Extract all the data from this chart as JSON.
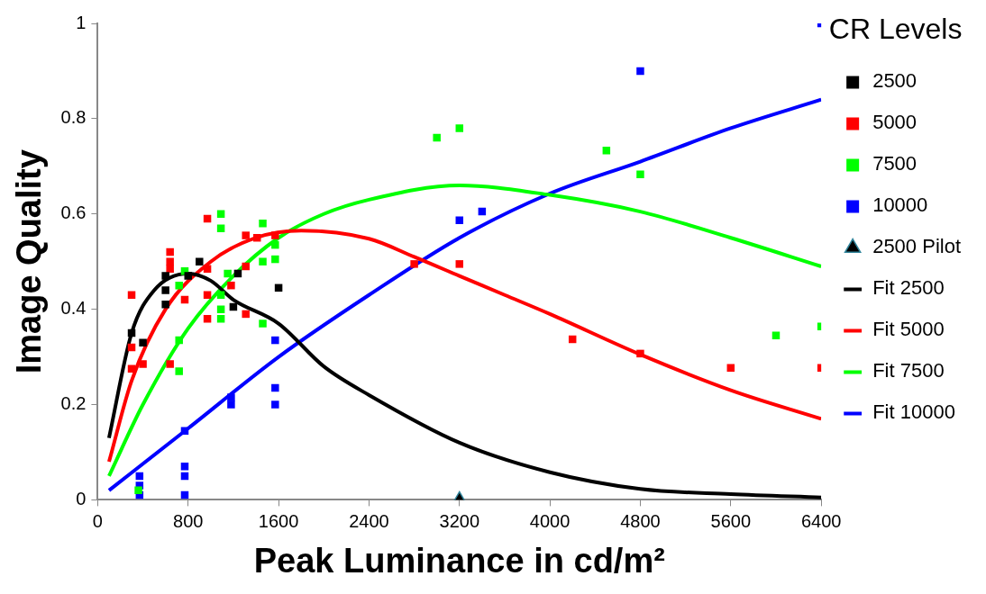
{
  "chart_data": {
    "type": "scatter",
    "xlabel": "Peak Luminance in cd/m²",
    "ylabel": "Image Quality",
    "legend_title": "CR Levels",
    "legend": "right",
    "grid": false,
    "xlim": [
      0,
      6400
    ],
    "xticks": [
      0,
      800,
      1600,
      2400,
      3200,
      4000,
      4800,
      5600,
      6400
    ],
    "ylim": [
      0,
      1
    ],
    "yticks": [
      0,
      0.2,
      0.4,
      0.6,
      0.8,
      1
    ],
    "series": [
      {
        "name": "2500",
        "type": "scatter",
        "marker": "square",
        "color": "#000000",
        "x": [
          300,
          400,
          600,
          600,
          600,
          800,
          900,
          1240,
          1200,
          1600
        ],
        "values": [
          0.35,
          0.33,
          0.47,
          0.44,
          0.41,
          0.47,
          0.5,
          0.475,
          0.405,
          0.445
        ]
      },
      {
        "name": "5000",
        "type": "scatter",
        "marker": "square",
        "color": "#ff0000",
        "x": [
          300,
          300,
          300,
          400,
          640,
          640,
          640,
          640,
          770,
          970,
          970,
          970,
          970,
          1180,
          1310,
          1310,
          1310,
          1410,
          1570,
          2800,
          3200,
          4200,
          4800,
          5600,
          6400
        ],
        "values": [
          0.43,
          0.32,
          0.275,
          0.285,
          0.52,
          0.5,
          0.485,
          0.285,
          0.42,
          0.59,
          0.485,
          0.43,
          0.38,
          0.45,
          0.555,
          0.49,
          0.39,
          0.55,
          0.555,
          0.495,
          0.495,
          0.337,
          0.307,
          0.277,
          0.277
        ]
      },
      {
        "name": "7500",
        "type": "scatter",
        "marker": "square",
        "color": "#00ff00",
        "x": [
          360,
          720,
          720,
          720,
          770,
          1090,
          1090,
          1090,
          1090,
          1090,
          1150,
          1460,
          1460,
          1460,
          1570,
          1570,
          3000,
          3200,
          4500,
          4800,
          6000,
          6400
        ],
        "values": [
          0.02,
          0.45,
          0.335,
          0.27,
          0.48,
          0.6,
          0.57,
          0.43,
          0.4,
          0.38,
          0.475,
          0.58,
          0.5,
          0.37,
          0.535,
          0.505,
          0.76,
          0.78,
          0.733,
          0.683,
          0.345,
          0.364
        ]
      },
      {
        "name": "10000",
        "type": "scatter",
        "marker": "square",
        "color": "#0000ff",
        "x": [
          370,
          370,
          370,
          770,
          770,
          770,
          770,
          1180,
          1180,
          1570,
          1570,
          1570,
          3200,
          3400,
          4800,
          6400
        ],
        "values": [
          0.05,
          0.03,
          0.01,
          0.145,
          0.07,
          0.05,
          0.01,
          0.215,
          0.2,
          0.335,
          0.235,
          0.2,
          0.587,
          0.605,
          0.9,
          1
        ]
      },
      {
        "name": "2500 Pilot",
        "type": "scatter",
        "marker": "triangle",
        "color": "#000000",
        "x": [
          3200
        ],
        "values": [
          0
        ]
      },
      {
        "name": "Fit 2500",
        "type": "line",
        "marker": "none",
        "color": "#000000",
        "x": [
          100,
          300,
          500,
          800,
          1000,
          1200,
          1600,
          2000,
          2400,
          3200,
          4000,
          4800,
          5600,
          6400
        ],
        "values": [
          0.13,
          0.35,
          0.44,
          0.475,
          0.46,
          0.42,
          0.37,
          0.28,
          0.22,
          0.12,
          0.058,
          0.023,
          0.012,
          0.005
        ]
      },
      {
        "name": "Fit 5000",
        "type": "line",
        "marker": "none",
        "color": "#ff0000",
        "x": [
          100,
          300,
          600,
          1000,
          1400,
          1800,
          2400,
          2800,
          3200,
          3600,
          4000,
          4800,
          5600,
          6400
        ],
        "values": [
          0.08,
          0.25,
          0.4,
          0.5,
          0.55,
          0.565,
          0.548,
          0.51,
          0.47,
          0.43,
          0.39,
          0.305,
          0.23,
          0.17
        ]
      },
      {
        "name": "Fit 7500",
        "type": "line",
        "marker": "none",
        "color": "#00ff00",
        "x": [
          100,
          400,
          800,
          1200,
          1600,
          2000,
          2400,
          3200,
          4000,
          4800,
          5600,
          6400
        ],
        "values": [
          0.05,
          0.2,
          0.36,
          0.47,
          0.55,
          0.6,
          0.63,
          0.66,
          0.64,
          0.605,
          0.55,
          0.49
        ]
      },
      {
        "name": "Fit 10000",
        "type": "line",
        "marker": "none",
        "color": "#0000ff",
        "x": [
          100,
          800,
          1600,
          2400,
          3200,
          4000,
          4800,
          5600,
          6400
        ],
        "values": [
          0.02,
          0.15,
          0.3,
          0.43,
          0.55,
          0.643,
          0.71,
          0.78,
          0.84
        ]
      }
    ]
  }
}
